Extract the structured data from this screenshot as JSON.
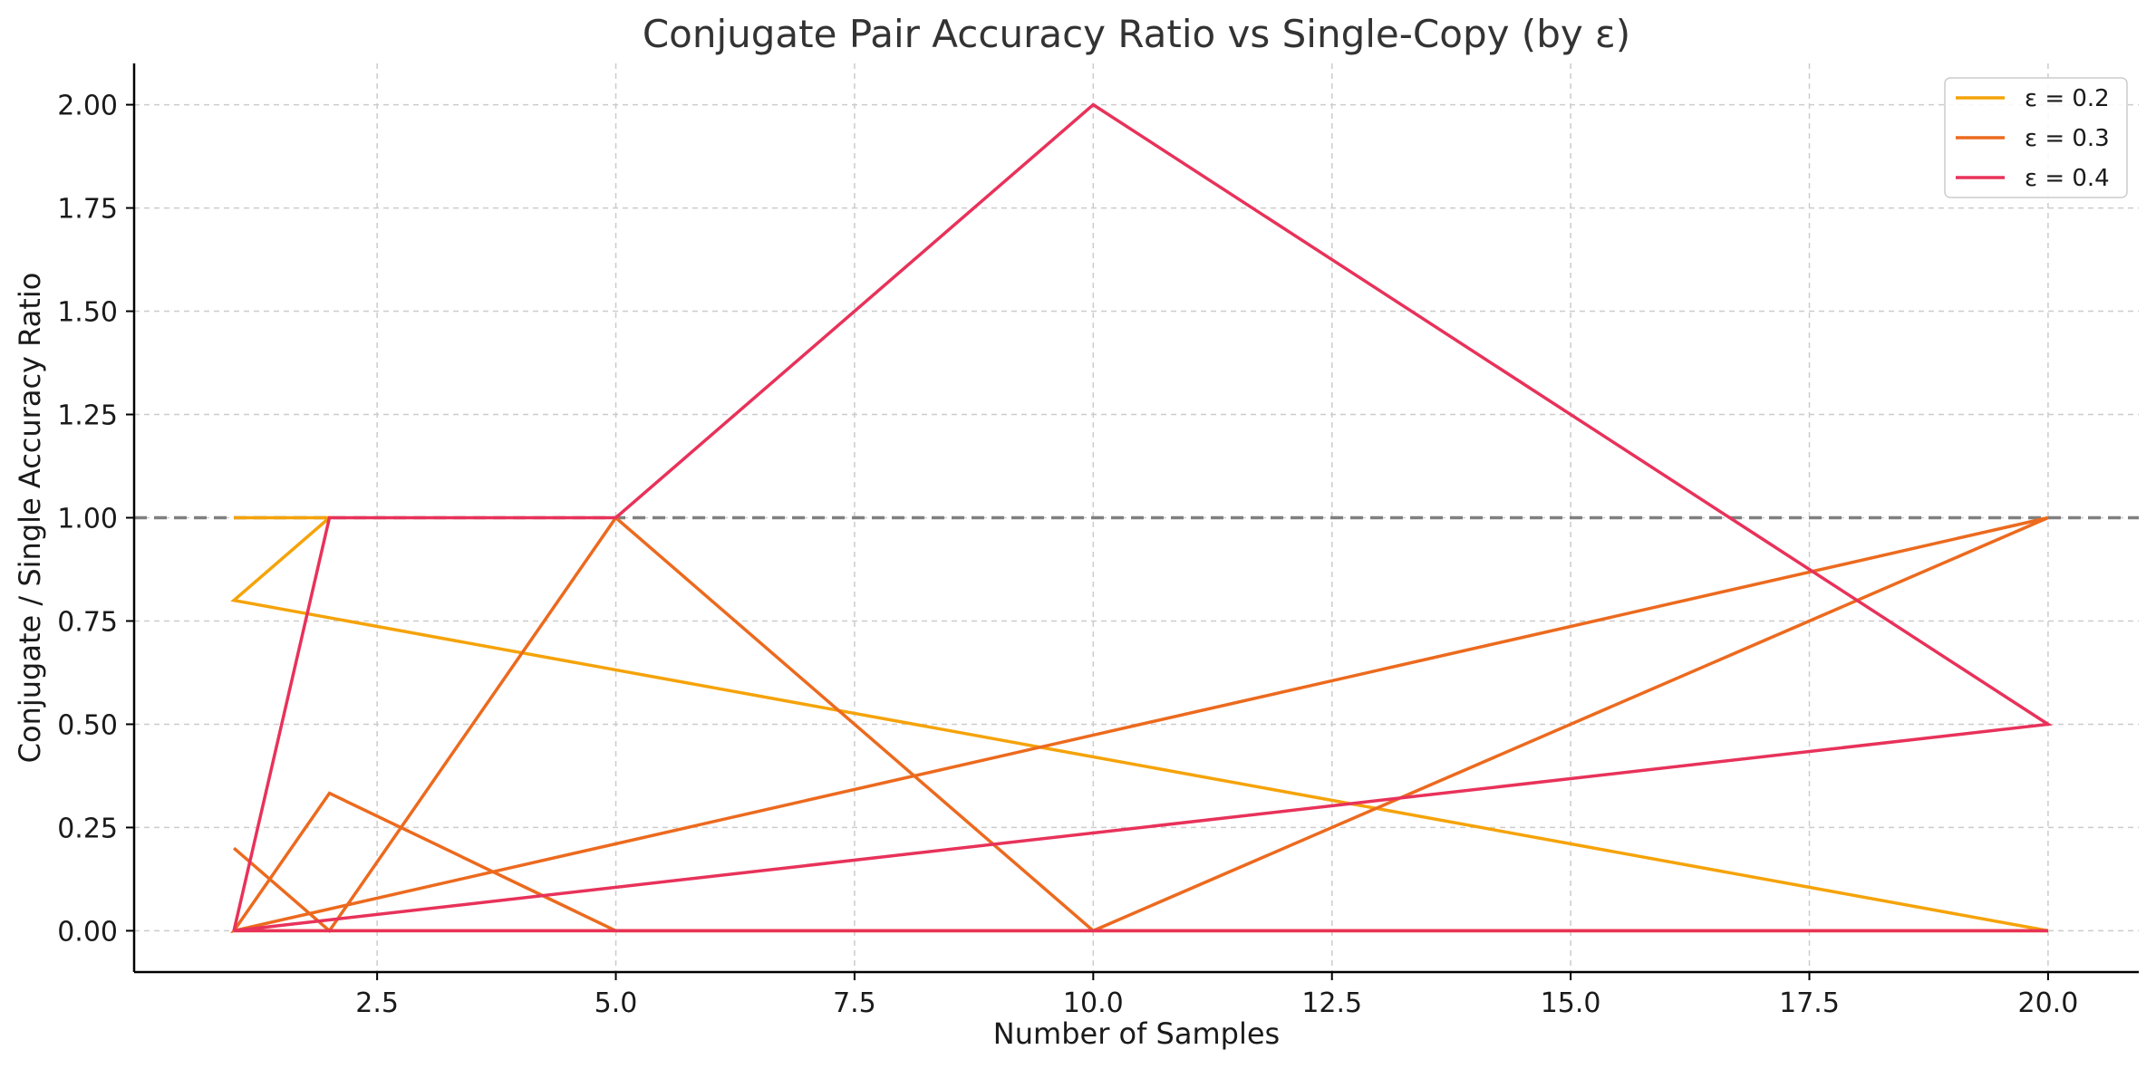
{
  "chart_data": {
    "type": "line",
    "title": "Conjugate Pair Accuracy Ratio vs Single-Copy (by ε)",
    "xlabel": "Number of Samples",
    "ylabel": "Conjugate / Single Accuracy Ratio",
    "xlim": [
      -0.045,
      20.95
    ],
    "ylim": [
      -0.1,
      2.1
    ],
    "xticks": [
      2.5,
      5.0,
      7.5,
      10.0,
      12.5,
      15.0,
      17.5,
      20.0
    ],
    "xtick_labels": [
      "2.5",
      "5.0",
      "7.5",
      "10.0",
      "12.5",
      "15.0",
      "17.5",
      "20.0"
    ],
    "yticks": [
      0.0,
      0.25,
      0.5,
      0.75,
      1.0,
      1.25,
      1.5,
      1.75,
      2.0
    ],
    "ytick_labels": [
      "0.00",
      "0.25",
      "0.50",
      "0.75",
      "1.00",
      "1.25",
      "1.50",
      "1.75",
      "2.00"
    ],
    "grid": true,
    "legend_position": "top-right",
    "reference_line": {
      "y": 1.0,
      "style": "dashed",
      "color": "#808080"
    },
    "series": [
      {
        "name": "ε = 0.2",
        "color": "#F5A30A",
        "points": [
          [
            1,
            1.0
          ],
          [
            2,
            1.0
          ],
          [
            1,
            0.8
          ],
          [
            20,
            0.0
          ],
          [
            1,
            0.0
          ],
          [
            20,
            0.0
          ]
        ]
      },
      {
        "name": "ε = 0.3",
        "color": "#EC6A1E",
        "points": [
          [
            1,
            0.2
          ],
          [
            2,
            0.0
          ],
          [
            5,
            1.0
          ],
          [
            10,
            0.0
          ],
          [
            20,
            1.0
          ],
          [
            1,
            0.0
          ],
          [
            2,
            0.333
          ],
          [
            5,
            0.0
          ],
          [
            20,
            0.0
          ]
        ]
      },
      {
        "name": "ε = 0.4",
        "color": "#E8325A",
        "points": [
          [
            1,
            0.0
          ],
          [
            2,
            1.0
          ],
          [
            5,
            1.0
          ],
          [
            10,
            2.0
          ],
          [
            20,
            0.5
          ],
          [
            1,
            0.0
          ],
          [
            20,
            0.0
          ]
        ]
      }
    ]
  }
}
